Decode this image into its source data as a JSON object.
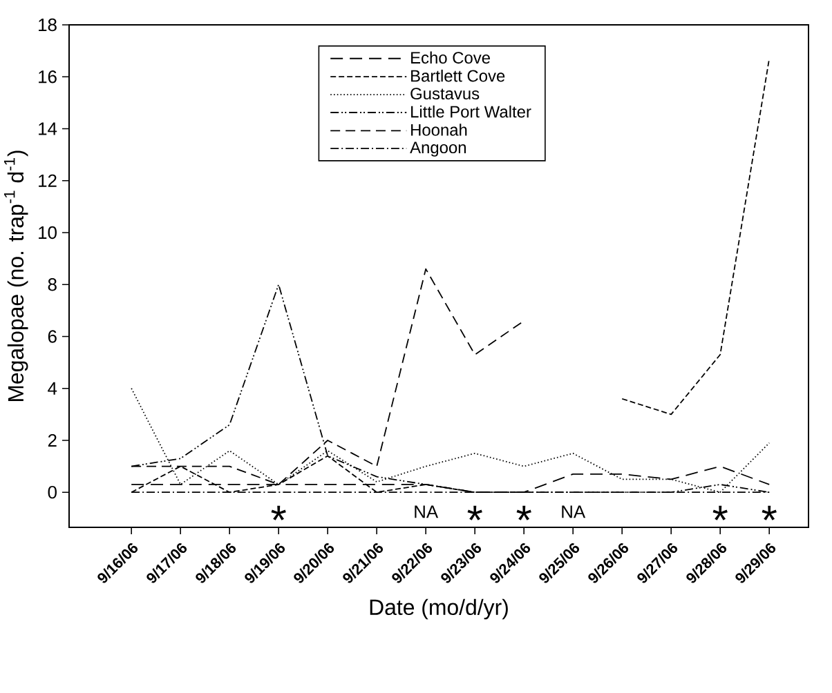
{
  "chart_data": {
    "type": "line",
    "xlabel": "Date (mo/d/yr)",
    "ylabel": "Megalopae (no. trap$^{-1}$ d$^{-1}$)",
    "categories": [
      "9/16/06",
      "9/17/06",
      "9/18/06",
      "9/19/06",
      "9/20/06",
      "9/21/06",
      "9/22/06",
      "9/23/06",
      "9/24/06",
      "9/25/06",
      "9/26/06",
      "9/27/06",
      "9/28/06",
      "9/29/06"
    ],
    "ylim": [
      -1.35,
      18
    ],
    "yticks": [
      0,
      2,
      4,
      6,
      8,
      10,
      12,
      14,
      16,
      18
    ],
    "legend": "top",
    "grid": false,
    "series": [
      {
        "name": "Echo Cove",
        "color": "#000000",
        "line_style": "long dashed",
        "values": [
          0.3,
          0.3,
          0.3,
          0.3,
          0.3,
          0.3,
          0.3,
          0.0,
          0.0,
          0.7,
          0.7,
          0.5,
          1.0,
          0.3
        ]
      },
      {
        "name": "Bartlett Cove",
        "color": "#000000",
        "line_style": "dashed",
        "values": [
          0.0,
          1.0,
          0.0,
          0.3,
          1.4,
          0.0,
          0.3,
          0.0,
          0.0,
          null,
          3.6,
          3.0,
          5.3,
          16.7
        ]
      },
      {
        "name": "Gustavus",
        "color": "#000000",
        "line_style": "dotted",
        "values": [
          4.0,
          0.3,
          1.6,
          0.3,
          1.6,
          0.4,
          1.0,
          1.5,
          1.0,
          1.5,
          0.5,
          0.5,
          0.0,
          1.9
        ]
      },
      {
        "name": "Little Port Walter",
        "color": "#000000",
        "line_style": "dash dot dot",
        "values": [
          1.0,
          1.3,
          2.6,
          8.0,
          1.4,
          0.6,
          0.3,
          0.0,
          0.0,
          0.0,
          0.0,
          0.0,
          0.3,
          0.0
        ]
      },
      {
        "name": "Hoonah",
        "color": "#000000",
        "line_style": "medium dashed",
        "values": [
          1.0,
          1.0,
          1.0,
          0.3,
          2.0,
          1.0,
          8.6,
          5.3,
          6.6,
          null,
          null,
          null,
          null,
          null
        ]
      },
      {
        "name": "Angoon",
        "color": "#000000",
        "line_style": "dash dot",
        "values": [
          0.0,
          0.0,
          0.0,
          0.0,
          0.0,
          0.0,
          0.0,
          0.0,
          0.0,
          0.0,
          0.0,
          0.0,
          0.0,
          0.0
        ]
      }
    ],
    "annotations": [
      "*",
      "NA",
      "*",
      "*",
      "NA",
      "*",
      "*"
    ]
  }
}
